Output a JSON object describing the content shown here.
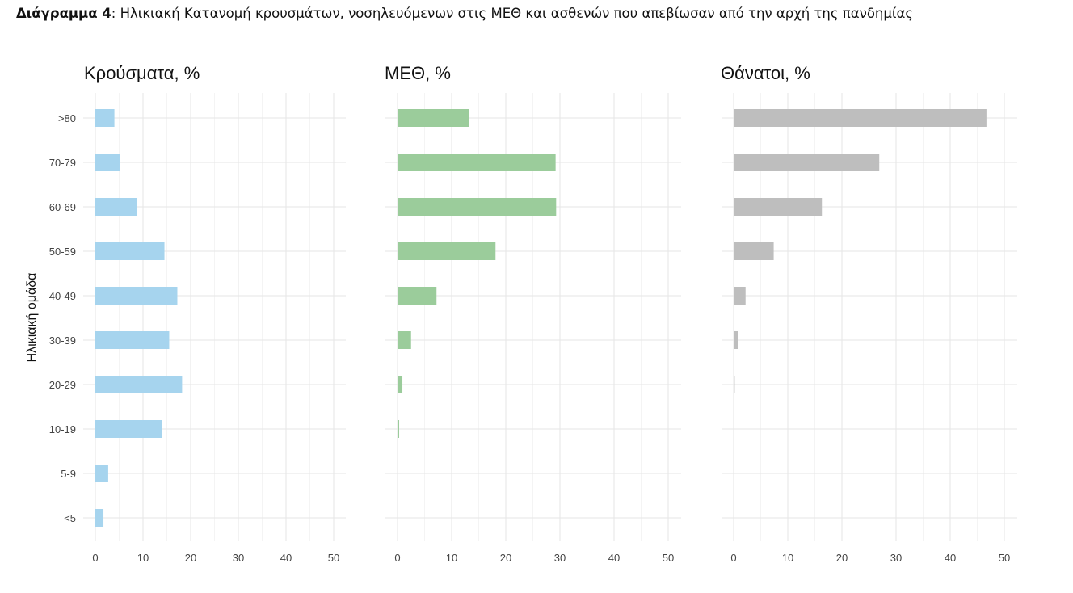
{
  "caption": {
    "prefix": "Διάγραμμα 4",
    "text": ": Ηλικιακή Κατανομή κρουσμάτων, νοσηλευόμενων στις ΜΕΘ και ασθενών που απεβίωσαν από την αρχή της πανδημίας"
  },
  "chart_data": [
    {
      "type": "bar",
      "orientation": "horizontal",
      "title": "Κρούσματα, %",
      "ylabel": "Ηλικιακή ομάδα",
      "xlabel": "",
      "categories": [
        ">80",
        "70-79",
        "60-69",
        "50-59",
        "40-49",
        "30-39",
        "20-29",
        "10-19",
        "5-9",
        "<5"
      ],
      "values": [
        4,
        5.1,
        8.7,
        14.5,
        17.2,
        15.5,
        18.2,
        13.9,
        2.7,
        1.7
      ],
      "xlim": [
        0,
        52
      ],
      "xticks": [
        0,
        10,
        20,
        30,
        40,
        50
      ],
      "color": "#a6d4ee",
      "grid": true
    },
    {
      "type": "bar",
      "orientation": "horizontal",
      "title": "ΜΕΘ, %",
      "xlabel": "",
      "categories": [
        ">80",
        "70-79",
        "60-69",
        "50-59",
        "40-49",
        "30-39",
        "20-29",
        "10-19",
        "5-9",
        "<5"
      ],
      "values": [
        13.2,
        29.2,
        29.3,
        18.1,
        7.2,
        2.5,
        0.9,
        0.3,
        0.1,
        0.1
      ],
      "xlim": [
        0,
        52
      ],
      "xticks": [
        0,
        10,
        20,
        30,
        40,
        50
      ],
      "color": "#9bcc9b",
      "grid": true
    },
    {
      "type": "bar",
      "orientation": "horizontal",
      "title": "Θάνατοι, %",
      "xlabel": "",
      "categories": [
        ">80",
        "70-79",
        "60-69",
        "50-59",
        "40-49",
        "30-39",
        "20-29",
        "10-19",
        "5-9",
        "<5"
      ],
      "values": [
        46.7,
        26.9,
        16.3,
        7.4,
        2.2,
        0.8,
        0.2,
        0.1,
        0.05,
        0.05
      ],
      "xlim": [
        0,
        52
      ],
      "xticks": [
        0,
        10,
        20,
        30,
        40,
        50
      ],
      "color": "#bebebe",
      "grid": true
    }
  ]
}
